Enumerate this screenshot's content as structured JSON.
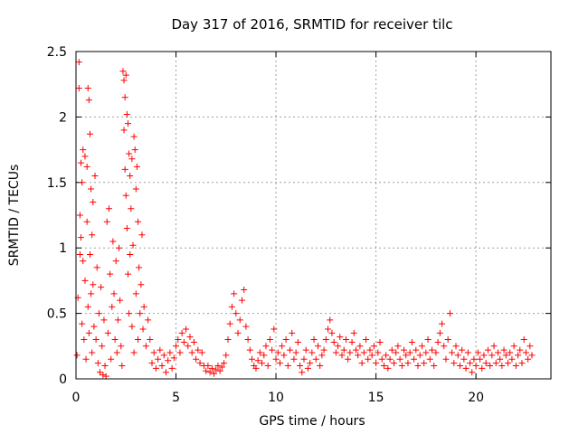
{
  "chart_data": {
    "type": "scatter",
    "title": "Day 317 of 2016, SRMTID for receiver tilc",
    "xlabel": "GPS time / hours",
    "ylabel": "SRMTID / TECUs",
    "xlim": [
      0,
      23.75
    ],
    "ylim": [
      0,
      2.5
    ],
    "x_ticks": [
      0,
      5,
      10,
      15,
      20
    ],
    "y_ticks": [
      0,
      0.5,
      1,
      1.5,
      2,
      2.5
    ],
    "x_tick_labels": [
      "0",
      "5",
      "10",
      "15",
      "20"
    ],
    "y_tick_labels": [
      "0",
      "0.5",
      "1",
      "1.5",
      "2",
      "2.5"
    ],
    "grid": true,
    "marker": "+",
    "point_color": "#ff0000",
    "series": [
      {
        "values": [
          [
            0.05,
            0.18
          ],
          [
            0.1,
            0.62
          ],
          [
            0.15,
            2.42
          ],
          [
            0.15,
            2.22
          ],
          [
            0.2,
            1.25
          ],
          [
            0.2,
            0.95
          ],
          [
            0.25,
            1.65
          ],
          [
            0.25,
            1.08
          ],
          [
            0.3,
            1.5
          ],
          [
            0.3,
            0.42
          ],
          [
            0.35,
            0.9
          ],
          [
            0.35,
            1.75
          ],
          [
            0.4,
            0.3
          ],
          [
            0.45,
            1.7
          ],
          [
            0.45,
            0.75
          ],
          [
            0.5,
            0.15
          ],
          [
            0.55,
            1.62
          ],
          [
            0.55,
            1.2
          ],
          [
            0.6,
            0.55
          ],
          [
            0.6,
            2.22
          ],
          [
            0.65,
            0.35
          ],
          [
            0.65,
            2.13
          ],
          [
            0.7,
            0.95
          ],
          [
            0.7,
            1.87
          ],
          [
            0.75,
            0.65
          ],
          [
            0.75,
            1.45
          ],
          [
            0.8,
            0.2
          ],
          [
            0.8,
            1.1
          ],
          [
            0.85,
            0.72
          ],
          [
            0.85,
            1.35
          ],
          [
            0.9,
            0.4
          ],
          [
            0.95,
            1.55
          ],
          [
            1.0,
            0.3
          ],
          [
            1.05,
            0.85
          ],
          [
            1.1,
            0.12
          ],
          [
            1.15,
            0.5
          ],
          [
            1.2,
            0.05
          ],
          [
            1.25,
            0.7
          ],
          [
            1.3,
            0.25
          ],
          [
            1.35,
            0.03
          ],
          [
            1.4,
            0.45
          ],
          [
            1.45,
            0.1
          ],
          [
            1.5,
            0.02
          ],
          [
            1.55,
            1.2
          ],
          [
            1.6,
            0.35
          ],
          [
            1.65,
            1.3
          ],
          [
            1.7,
            0.8
          ],
          [
            1.75,
            0.15
          ],
          [
            1.8,
            0.55
          ],
          [
            1.85,
            1.05
          ],
          [
            1.9,
            0.65
          ],
          [
            1.95,
            0.3
          ],
          [
            2.0,
            0.9
          ],
          [
            2.05,
            0.2
          ],
          [
            2.1,
            0.45
          ],
          [
            2.15,
            1.0
          ],
          [
            2.2,
            0.6
          ],
          [
            2.25,
            0.25
          ],
          [
            2.3,
            0.1
          ],
          [
            2.35,
            2.35
          ],
          [
            2.4,
            2.28
          ],
          [
            2.4,
            1.9
          ],
          [
            2.45,
            2.15
          ],
          [
            2.45,
            1.6
          ],
          [
            2.5,
            2.32
          ],
          [
            2.5,
            1.4
          ],
          [
            2.55,
            2.02
          ],
          [
            2.55,
            1.15
          ],
          [
            2.6,
            1.95
          ],
          [
            2.6,
            0.8
          ],
          [
            2.65,
            1.72
          ],
          [
            2.65,
            0.5
          ],
          [
            2.7,
            1.55
          ],
          [
            2.7,
            0.95
          ],
          [
            2.75,
            1.3
          ],
          [
            2.8,
            1.68
          ],
          [
            2.8,
            0.4
          ],
          [
            2.85,
            1.02
          ],
          [
            2.9,
            1.85
          ],
          [
            2.9,
            0.2
          ],
          [
            2.95,
            1.75
          ],
          [
            3.0,
            1.45
          ],
          [
            3.0,
            0.65
          ],
          [
            3.05,
            1.62
          ],
          [
            3.1,
            1.2
          ],
          [
            3.1,
            0.3
          ],
          [
            3.15,
            0.85
          ],
          [
            3.2,
            0.5
          ],
          [
            3.25,
            0.72
          ],
          [
            3.3,
            1.1
          ],
          [
            3.35,
            0.38
          ],
          [
            3.4,
            0.55
          ],
          [
            3.5,
            0.25
          ],
          [
            3.6,
            0.45
          ],
          [
            3.7,
            0.3
          ],
          [
            3.8,
            0.12
          ],
          [
            3.9,
            0.2
          ],
          [
            4.0,
            0.08
          ],
          [
            4.1,
            0.15
          ],
          [
            4.2,
            0.22
          ],
          [
            4.3,
            0.1
          ],
          [
            4.4,
            0.18
          ],
          [
            4.5,
            0.05
          ],
          [
            4.6,
            0.14
          ],
          [
            4.7,
            0.2
          ],
          [
            4.8,
            0.08
          ],
          [
            4.9,
            0.16
          ],
          [
            5.0,
            0.25
          ],
          [
            5.1,
            0.3
          ],
          [
            5.2,
            0.2
          ],
          [
            5.3,
            0.35
          ],
          [
            5.4,
            0.28
          ],
          [
            5.5,
            0.38
          ],
          [
            5.6,
            0.25
          ],
          [
            5.7,
            0.32
          ],
          [
            5.8,
            0.2
          ],
          [
            5.9,
            0.28
          ],
          [
            6.0,
            0.15
          ],
          [
            6.1,
            0.22
          ],
          [
            6.2,
            0.12
          ],
          [
            6.3,
            0.2
          ],
          [
            6.4,
            0.1
          ],
          [
            6.5,
            0.06
          ],
          [
            6.6,
            0.1
          ],
          [
            6.7,
            0.05
          ],
          [
            6.8,
            0.08
          ],
          [
            6.9,
            0.04
          ],
          [
            7.0,
            0.07
          ],
          [
            7.1,
            0.1
          ],
          [
            7.2,
            0.06
          ],
          [
            7.3,
            0.09
          ],
          [
            7.4,
            0.12
          ],
          [
            7.5,
            0.18
          ],
          [
            7.6,
            0.3
          ],
          [
            7.7,
            0.42
          ],
          [
            7.8,
            0.55
          ],
          [
            7.9,
            0.65
          ],
          [
            8.0,
            0.5
          ],
          [
            8.1,
            0.35
          ],
          [
            8.2,
            0.45
          ],
          [
            8.3,
            0.6
          ],
          [
            8.4,
            0.68
          ],
          [
            8.5,
            0.4
          ],
          [
            8.6,
            0.3
          ],
          [
            8.7,
            0.22
          ],
          [
            8.8,
            0.15
          ],
          [
            8.9,
            0.1
          ],
          [
            9.0,
            0.08
          ],
          [
            9.1,
            0.14
          ],
          [
            9.2,
            0.2
          ],
          [
            9.3,
            0.12
          ],
          [
            9.4,
            0.18
          ],
          [
            9.5,
            0.25
          ],
          [
            9.6,
            0.1
          ],
          [
            9.7,
            0.3
          ],
          [
            9.8,
            0.22
          ],
          [
            9.9,
            0.38
          ],
          [
            10.0,
            0.15
          ],
          [
            10.1,
            0.2
          ],
          [
            10.2,
            0.12
          ],
          [
            10.3,
            0.25
          ],
          [
            10.4,
            0.18
          ],
          [
            10.5,
            0.3
          ],
          [
            10.6,
            0.1
          ],
          [
            10.7,
            0.22
          ],
          [
            10.8,
            0.35
          ],
          [
            10.9,
            0.15
          ],
          [
            11.0,
            0.2
          ],
          [
            11.1,
            0.28
          ],
          [
            11.2,
            0.1
          ],
          [
            11.3,
            0.05
          ],
          [
            11.4,
            0.15
          ],
          [
            11.5,
            0.22
          ],
          [
            11.6,
            0.08
          ],
          [
            11.7,
            0.12
          ],
          [
            11.8,
            0.2
          ],
          [
            11.9,
            0.3
          ],
          [
            12.0,
            0.15
          ],
          [
            12.1,
            0.25
          ],
          [
            12.2,
            0.1
          ],
          [
            12.3,
            0.18
          ],
          [
            12.4,
            0.22
          ],
          [
            12.5,
            0.3
          ],
          [
            12.6,
            0.38
          ],
          [
            12.7,
            0.45
          ],
          [
            12.8,
            0.35
          ],
          [
            12.9,
            0.28
          ],
          [
            13.0,
            0.2
          ],
          [
            13.1,
            0.25
          ],
          [
            13.2,
            0.32
          ],
          [
            13.3,
            0.18
          ],
          [
            13.4,
            0.22
          ],
          [
            13.5,
            0.3
          ],
          [
            13.6,
            0.15
          ],
          [
            13.7,
            0.2
          ],
          [
            13.8,
            0.28
          ],
          [
            13.9,
            0.35
          ],
          [
            14.0,
            0.22
          ],
          [
            14.1,
            0.18
          ],
          [
            14.2,
            0.25
          ],
          [
            14.3,
            0.12
          ],
          [
            14.4,
            0.2
          ],
          [
            14.5,
            0.3
          ],
          [
            14.6,
            0.15
          ],
          [
            14.7,
            0.22
          ],
          [
            14.8,
            0.18
          ],
          [
            14.9,
            0.25
          ],
          [
            15.0,
            0.12
          ],
          [
            15.1,
            0.2
          ],
          [
            15.2,
            0.28
          ],
          [
            15.3,
            0.15
          ],
          [
            15.4,
            0.1
          ],
          [
            15.5,
            0.18
          ],
          [
            15.6,
            0.08
          ],
          [
            15.7,
            0.15
          ],
          [
            15.8,
            0.22
          ],
          [
            15.9,
            0.12
          ],
          [
            16.0,
            0.2
          ],
          [
            16.1,
            0.25
          ],
          [
            16.2,
            0.15
          ],
          [
            16.3,
            0.1
          ],
          [
            16.4,
            0.22
          ],
          [
            16.5,
            0.18
          ],
          [
            16.6,
            0.12
          ],
          [
            16.7,
            0.2
          ],
          [
            16.8,
            0.28
          ],
          [
            16.9,
            0.15
          ],
          [
            17.0,
            0.22
          ],
          [
            17.1,
            0.1
          ],
          [
            17.2,
            0.18
          ],
          [
            17.3,
            0.25
          ],
          [
            17.4,
            0.12
          ],
          [
            17.5,
            0.2
          ],
          [
            17.6,
            0.3
          ],
          [
            17.7,
            0.15
          ],
          [
            17.8,
            0.22
          ],
          [
            17.9,
            0.1
          ],
          [
            18.0,
            0.2
          ],
          [
            18.1,
            0.28
          ],
          [
            18.2,
            0.35
          ],
          [
            18.3,
            0.42
          ],
          [
            18.4,
            0.25
          ],
          [
            18.5,
            0.15
          ],
          [
            18.6,
            0.3
          ],
          [
            18.7,
            0.5
          ],
          [
            18.8,
            0.2
          ],
          [
            18.9,
            0.12
          ],
          [
            19.0,
            0.25
          ],
          [
            19.1,
            0.18
          ],
          [
            19.2,
            0.1
          ],
          [
            19.3,
            0.22
          ],
          [
            19.4,
            0.15
          ],
          [
            19.5,
            0.08
          ],
          [
            19.6,
            0.2
          ],
          [
            19.7,
            0.12
          ],
          [
            19.8,
            0.05
          ],
          [
            19.9,
            0.15
          ],
          [
            20.0,
            0.1
          ],
          [
            20.1,
            0.2
          ],
          [
            20.2,
            0.15
          ],
          [
            20.3,
            0.08
          ],
          [
            20.4,
            0.18
          ],
          [
            20.5,
            0.12
          ],
          [
            20.6,
            0.22
          ],
          [
            20.7,
            0.1
          ],
          [
            20.8,
            0.18
          ],
          [
            20.9,
            0.25
          ],
          [
            21.0,
            0.12
          ],
          [
            21.1,
            0.2
          ],
          [
            21.2,
            0.15
          ],
          [
            21.3,
            0.1
          ],
          [
            21.4,
            0.22
          ],
          [
            21.5,
            0.18
          ],
          [
            21.6,
            0.12
          ],
          [
            21.7,
            0.2
          ],
          [
            21.8,
            0.15
          ],
          [
            21.9,
            0.25
          ],
          [
            22.0,
            0.1
          ],
          [
            22.1,
            0.18
          ],
          [
            22.2,
            0.22
          ],
          [
            22.3,
            0.12
          ],
          [
            22.4,
            0.3
          ],
          [
            22.5,
            0.2
          ],
          [
            22.6,
            0.15
          ],
          [
            22.7,
            0.25
          ],
          [
            22.8,
            0.18
          ]
        ]
      }
    ]
  }
}
